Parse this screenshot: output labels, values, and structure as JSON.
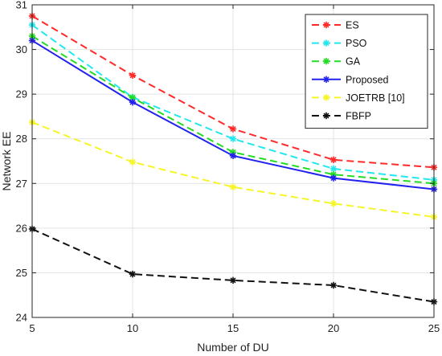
{
  "chart_data": {
    "type": "line",
    "title": "",
    "xlabel": "Number of DU",
    "ylabel": "Network EE",
    "x": [
      5,
      10,
      15,
      20,
      25
    ],
    "xlim": [
      5,
      25
    ],
    "ylim": [
      24,
      31
    ],
    "xticks": [
      5,
      10,
      15,
      20,
      25
    ],
    "yticks": [
      24,
      25,
      26,
      27,
      28,
      29,
      30,
      31
    ],
    "grid": true,
    "legend_position": "top-right",
    "series": [
      {
        "name": "ES",
        "values": [
          30.75,
          29.42,
          28.22,
          27.53,
          27.36
        ],
        "color": "#ff2a2a",
        "dash": "dashed",
        "marker": "asterisk"
      },
      {
        "name": "PSO",
        "values": [
          30.55,
          28.93,
          28.0,
          27.33,
          27.08
        ],
        "color": "#22e8ee",
        "dash": "dashed",
        "marker": "asterisk"
      },
      {
        "name": "GA",
        "values": [
          30.3,
          28.92,
          27.7,
          27.2,
          27.0
        ],
        "color": "#22dd22",
        "dash": "dashed",
        "marker": "asterisk"
      },
      {
        "name": "Proposed",
        "values": [
          30.2,
          28.82,
          27.62,
          27.12,
          26.87
        ],
        "color": "#2222ee",
        "dash": "solid",
        "marker": "asterisk"
      },
      {
        "name": "JOETRB [10]",
        "values": [
          28.37,
          27.48,
          26.92,
          26.55,
          26.25
        ],
        "color": "#f5f528",
        "dash": "dashed",
        "marker": "asterisk"
      },
      {
        "name": "FBFP",
        "values": [
          25.98,
          24.97,
          24.83,
          24.72,
          24.35
        ],
        "color": "#111111",
        "dash": "dashed",
        "marker": "asterisk"
      }
    ]
  }
}
